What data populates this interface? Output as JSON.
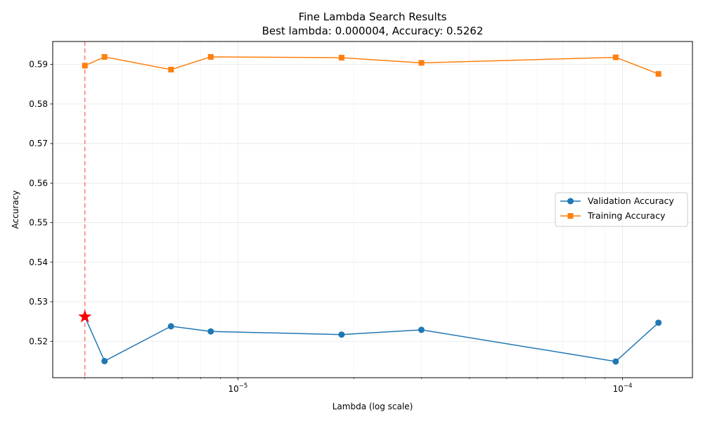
{
  "chart_data": {
    "type": "line",
    "title": "Fine Lambda Search Results",
    "subtitle": "Best lambda: 0.000004, Accuracy: 0.5262",
    "xlabel": "Lambda (log scale)",
    "ylabel": "Accuracy",
    "xscale": "log",
    "xlim": [
      3.3e-06,
      0.000152
    ],
    "ylim": [
      0.5108,
      0.5958
    ],
    "x_major_ticks": [
      {
        "value": 1e-05,
        "base": "10",
        "exp": "−5"
      },
      {
        "value": 0.0001,
        "base": "10",
        "exp": "−4"
      }
    ],
    "y_ticks": [
      0.52,
      0.53,
      0.54,
      0.55,
      0.56,
      0.57,
      0.58,
      0.59
    ],
    "y_tick_labels": [
      "0.52",
      "0.53",
      "0.54",
      "0.55",
      "0.56",
      "0.57",
      "0.58",
      "0.59"
    ],
    "grid": true,
    "legend_position": "center-right",
    "series": [
      {
        "name": "Validation Accuracy",
        "color": "#1f77b4",
        "marker": "circle",
        "x": [
          4e-06,
          4.5e-06,
          6.7e-06,
          8.5e-06,
          1.86e-05,
          3e-05,
          9.6e-05,
          0.000124
        ],
        "values": [
          0.5262,
          0.515,
          0.5238,
          0.5225,
          0.5217,
          0.5229,
          0.5149,
          0.5247
        ]
      },
      {
        "name": "Training Accuracy",
        "color": "#ff7f0e",
        "marker": "square",
        "x": [
          4e-06,
          4.5e-06,
          6.7e-06,
          8.5e-06,
          1.86e-05,
          3e-05,
          9.6e-05,
          0.000124
        ],
        "values": [
          0.5897,
          0.5919,
          0.5887,
          0.5919,
          0.5917,
          0.5904,
          0.5918,
          0.5876
        ]
      }
    ],
    "best_point": {
      "x": 4e-06,
      "y": 0.5262,
      "marker": "star",
      "color": "#ff0000"
    },
    "best_line": {
      "x": 4e-06,
      "color": "#ff7f7f",
      "style": "dashed"
    }
  }
}
